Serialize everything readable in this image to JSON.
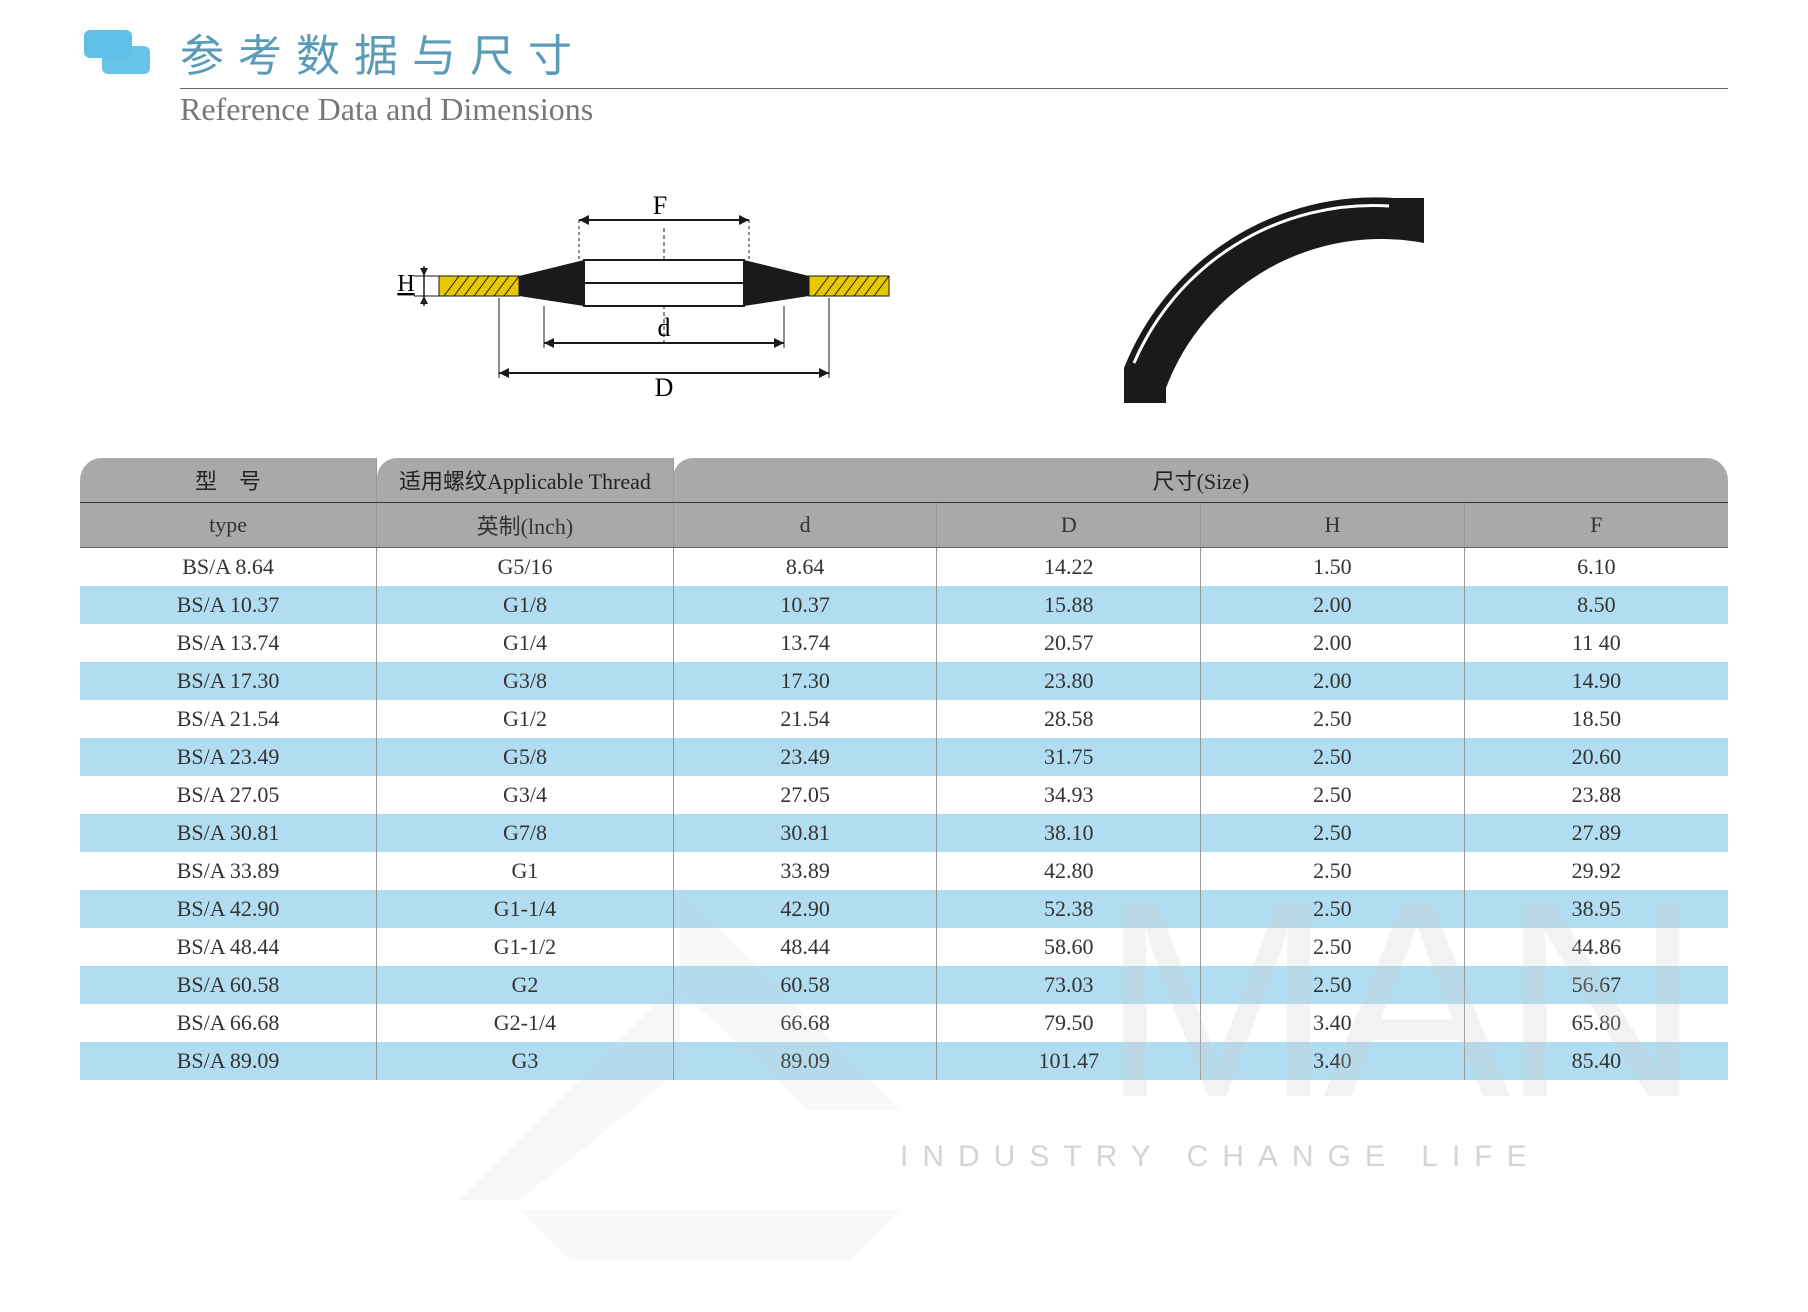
{
  "header": {
    "title_cn": "参考数据与尺寸",
    "title_en": "Reference Data and Dimensions",
    "icon_color": "#5fc1e8",
    "cn_color": "#5a9bb8",
    "en_color": "#777777",
    "cn_fontsize": 44,
    "en_fontsize": 32
  },
  "diagram": {
    "labels": {
      "F": "F",
      "d": "d",
      "D": "D",
      "H": "H"
    },
    "thread_color": "#e8c800",
    "body_color": "#1a1a1a",
    "dim_color": "#1a1a1a",
    "fontsize": 24
  },
  "table": {
    "header_bg": "#a8aaaa",
    "stripe_bg": "#b2ddf1",
    "border_color": "#999999",
    "fontsize": 22,
    "col_widths_pct": [
      18,
      18,
      16,
      16,
      16,
      16
    ],
    "header_row1": {
      "type_cn": "型　号",
      "thread_label": "适用螺纹Applicable  Thread",
      "size_label": "尺寸(Size)"
    },
    "header_row2": {
      "type_en": "type",
      "thread_en": "英制(lnch)",
      "d": "d",
      "D": "D",
      "H": "H",
      "F": "F"
    },
    "rows": [
      {
        "type": "BS/A 8.64",
        "thread": "G5/16",
        "d": "8.64",
        "D": "14.22",
        "H": "1.50",
        "F": "6.10"
      },
      {
        "type": "BS/A 10.37",
        "thread": "G1/8",
        "d": "10.37",
        "D": "15.88",
        "H": "2.00",
        "F": "8.50"
      },
      {
        "type": "BS/A 13.74",
        "thread": "G1/4",
        "d": "13.74",
        "D": "20.57",
        "H": "2.00",
        "F": "11 40"
      },
      {
        "type": "BS/A 17.30",
        "thread": "G3/8",
        "d": "17.30",
        "D": "23.80",
        "H": "2.00",
        "F": "14.90"
      },
      {
        "type": "BS/A 21.54",
        "thread": "G1/2",
        "d": "21.54",
        "D": "28.58",
        "H": "2.50",
        "F": "18.50"
      },
      {
        "type": "BS/A 23.49",
        "thread": "G5/8",
        "d": "23.49",
        "D": "31.75",
        "H": "2.50",
        "F": "20.60"
      },
      {
        "type": "BS/A 27.05",
        "thread": "G3/4",
        "d": "27.05",
        "D": "34.93",
        "H": "2.50",
        "F": "23.88"
      },
      {
        "type": "BS/A 30.81",
        "thread": "G7/8",
        "d": "30.81",
        "D": "38.10",
        "H": "2.50",
        "F": "27.89"
      },
      {
        "type": "BS/A 33.89",
        "thread": "G1",
        "d": "33.89",
        "D": "42.80",
        "H": "2.50",
        "F": "29.92"
      },
      {
        "type": "BS/A 42.90",
        "thread": "G1-1/4",
        "d": "42.90",
        "D": "52.38",
        "H": "2.50",
        "F": "38.95"
      },
      {
        "type": "BS/A 48.44",
        "thread": "G1-1/2",
        "d": "48.44",
        "D": "58.60",
        "H": "2.50",
        "F": "44.86"
      },
      {
        "type": "BS/A 60.58",
        "thread": "G2",
        "d": "60.58",
        "D": "73.03",
        "H": "2.50",
        "F": "56.67"
      },
      {
        "type": "BS/A 66.68",
        "thread": "G2-1/4",
        "d": "66.68",
        "D": "79.50",
        "H": "3.40",
        "F": "65.80"
      },
      {
        "type": "BS/A 89.09",
        "thread": "G3",
        "d": "89.09",
        "D": "101.47",
        "H": "3.40",
        "F": "85.40"
      }
    ]
  },
  "watermark": {
    "big_text": "MAN",
    "sub_text": "INDUSTRY CHANGE LIFE",
    "color": "#cccccc"
  }
}
